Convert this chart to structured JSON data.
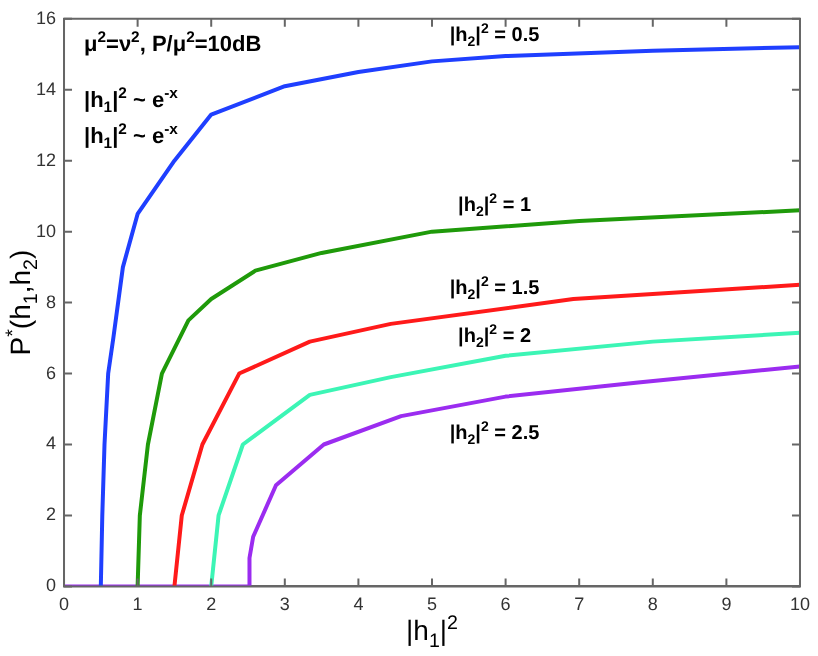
{
  "chart_data": {
    "type": "line",
    "xlabel": "|h$_{1}$|$^{2}$",
    "ylabel": "P$^{*}$(h$_{1}$,h$_{2}$)",
    "xlim": [
      0,
      10
    ],
    "xticks": [
      0,
      1,
      2,
      3,
      4,
      5,
      6,
      7,
      8,
      9,
      10
    ],
    "ylim": [
      0,
      16
    ],
    "yticks": [
      0,
      2,
      4,
      6,
      8,
      10,
      12,
      14,
      16
    ],
    "grid": false,
    "legend": false,
    "marker": "none",
    "line_style": "solid",
    "series": [
      {
        "name": "|h$_{2}$|$^{2}$ = 0.5",
        "color": "#1f3fff",
        "x": [
          0.5,
          0.52,
          0.55,
          0.6,
          0.67,
          0.8,
          1,
          1.5,
          2,
          3,
          4,
          5,
          6,
          8,
          10
        ],
        "values": [
          0,
          2,
          4,
          6,
          7,
          9,
          10.5,
          12,
          13.3,
          14.1,
          14.5,
          14.8,
          14.95,
          15.1,
          15.2
        ]
      },
      {
        "name": "|h$_{2}$|$^{2}$ = 1",
        "color": "#1f9a0a",
        "x": [
          1,
          1.03,
          1.14,
          1.33,
          1.69,
          2,
          2.6,
          3.5,
          5,
          7,
          10
        ],
        "values": [
          0,
          2,
          4,
          6,
          7.5,
          8.1,
          8.9,
          9.4,
          10,
          10.3,
          10.6
        ]
      },
      {
        "name": "|h$_{2}$|$^{2}$ = 1.5",
        "color": "#ff1a1a",
        "x": [
          1.5,
          1.6,
          1.88,
          2.38,
          3.34,
          4.44,
          6.92,
          10
        ],
        "values": [
          0,
          2,
          4,
          6,
          6.9,
          7.4,
          8.1,
          8.5
        ]
      },
      {
        "name": "|h$_{2}$|$^{2}$ = 2",
        "color": "#3cf5b5",
        "x": [
          2,
          2.1,
          2.43,
          3.34,
          4.44,
          6,
          8,
          10
        ],
        "values": [
          0,
          2,
          4,
          5.4,
          5.9,
          6.5,
          6.9,
          7.15
        ]
      },
      {
        "name": "|h$_{2}$|$^{2}$ = 2.5",
        "color": "#9b2cf0",
        "x": [
          0,
          2.5,
          2.52,
          2.57,
          2.88,
          3.53,
          4.58,
          6,
          7.8,
          10
        ],
        "values": [
          0,
          0,
          0.8,
          1.4,
          2.85,
          4,
          4.8,
          5.35,
          5.75,
          6.2
        ]
      }
    ],
    "annotations": [
      "μ$^{2}$=ν$^{2}$, P/μ$^{2}$=10dB",
      "|h$_{1}$|$^{2}$ ~ e$^{-x}$",
      "|h$_{1}$|$^{2}$ ~ e$^{-x}$"
    ]
  }
}
